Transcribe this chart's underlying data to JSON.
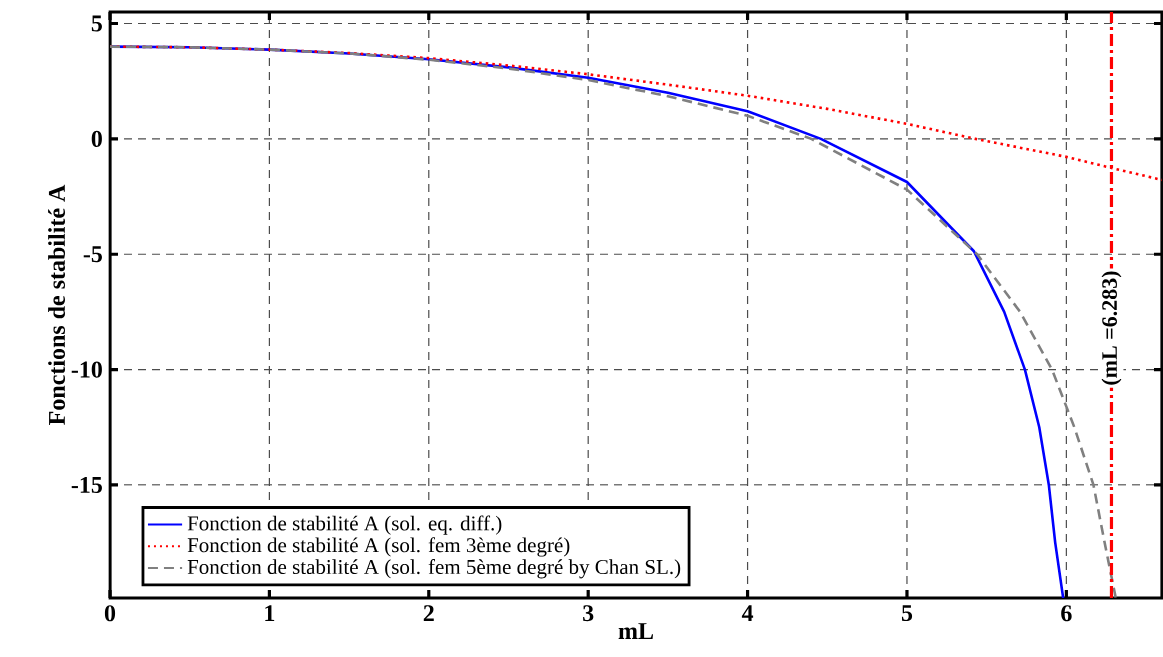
{
  "chart_data": {
    "type": "line",
    "xlabel": "mL",
    "ylabel": "Fonctions de stabilité A",
    "xlim": [
      0,
      6.6
    ],
    "ylim": [
      -19.9,
      5.5
    ],
    "xticks": [
      0,
      1,
      2,
      3,
      4,
      5,
      6
    ],
    "yticks": [
      5,
      0,
      -5,
      -10,
      -15
    ],
    "grid": true,
    "legend": "bottom left",
    "series": [
      {
        "name": "Fonction de stabilité A (sol. eq. diff.)",
        "color": "#0000ff",
        "line_style": "solid",
        "x": [
          0,
          0.5,
          1,
          1.5,
          2,
          2.5,
          3,
          3.5,
          4,
          4.46,
          5,
          5.42,
          5.61,
          5.74,
          5.83,
          5.89,
          5.93,
          5.98
        ],
        "values": [
          4,
          3.97,
          3.87,
          3.7,
          3.45,
          3.1,
          2.65,
          2.0,
          1.2,
          0,
          -1.87,
          -4.87,
          -7.5,
          -10,
          -12.5,
          -15,
          -17.5,
          -19.9
        ]
      },
      {
        "name": "Fonction de stabilité A (sol. fem 3ème degré)",
        "color": "#ff0000",
        "line_style": "dotted",
        "x": [
          0,
          0.5,
          1,
          1.5,
          2,
          2.5,
          3,
          3.5,
          4,
          4.5,
          5,
          5.43,
          6,
          6.283,
          6.6
        ],
        "values": [
          4,
          3.97,
          3.87,
          3.72,
          3.5,
          3.18,
          2.8,
          2.35,
          1.87,
          1.3,
          0.65,
          0,
          -0.78,
          -1.26,
          -1.78
        ]
      },
      {
        "name": "Fonction de stabilité A (sol. fem 5ème degré by Chan SL.)",
        "color": "#808080",
        "line_style": "dashed",
        "x": [
          0,
          0.5,
          1,
          1.5,
          2,
          2.5,
          3,
          3.5,
          4,
          4.4,
          5,
          5.44,
          5.71,
          5.91,
          6.05,
          6.17,
          6.24,
          6.31
        ],
        "values": [
          4,
          3.97,
          3.87,
          3.7,
          3.43,
          3.05,
          2.55,
          1.85,
          1.0,
          0,
          -2.2,
          -5,
          -7.5,
          -10,
          -12.5,
          -15,
          -17.5,
          -19.9
        ]
      }
    ],
    "ref_lines": [
      {
        "axis": "x",
        "value": 6.283,
        "label": "(mL =6.283)",
        "color": "#ff0000",
        "line_style": "dashdot"
      }
    ]
  }
}
